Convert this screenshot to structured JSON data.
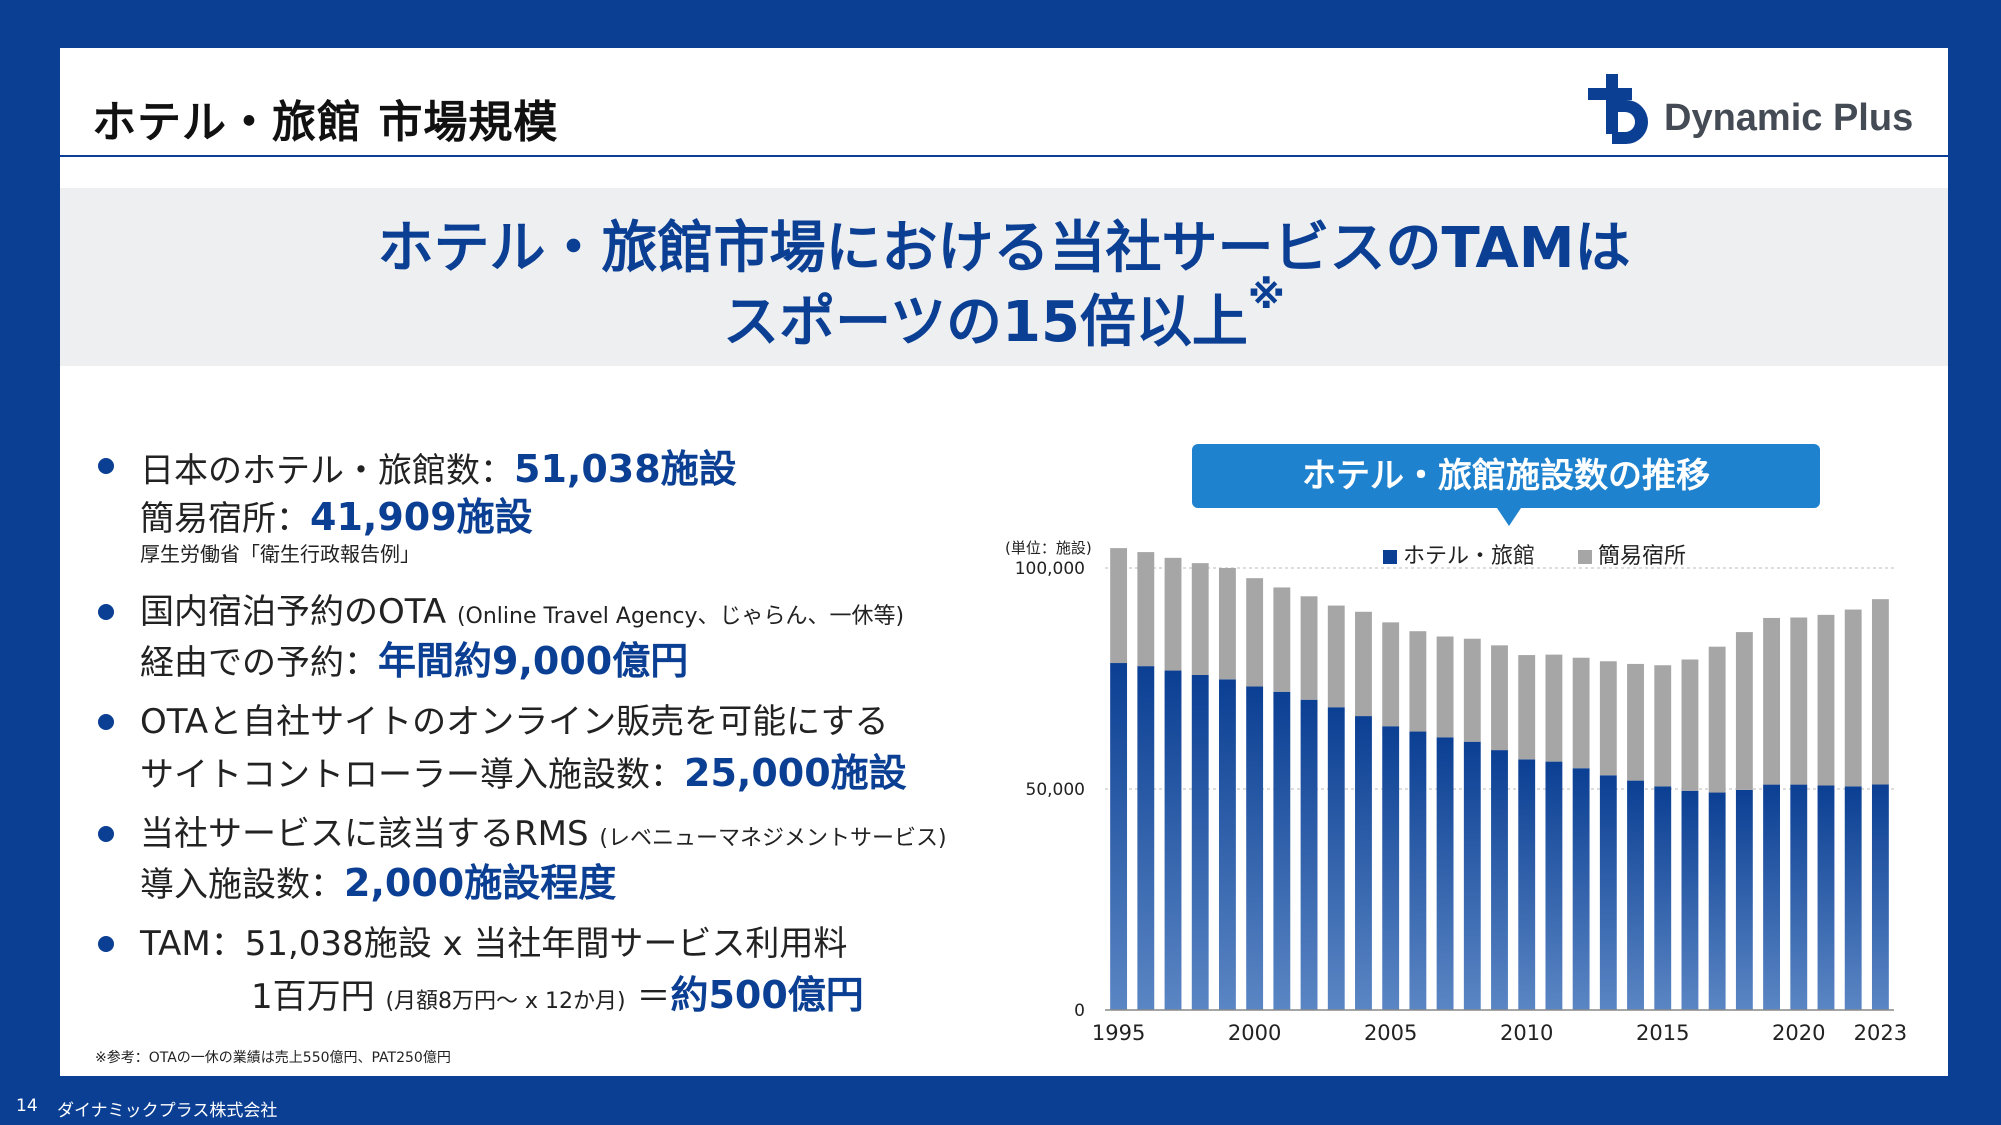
{
  "header": {
    "title": "ホテル・旅館 市場規模",
    "logo_text": "Dynamic Plus"
  },
  "hero": {
    "line1": "ホテル・旅館市場における当社サービスのTAMは",
    "line2": "スポーツの15倍以上",
    "mark": "※"
  },
  "bullets": [
    {
      "lines": [
        {
          "text": "日本のホテル・旅館数：",
          "highlight": "51,038施設"
        },
        {
          "text": "簡易宿所：",
          "highlight": "41,909施設"
        },
        {
          "source": "厚生労働省「衛生行政報告例」"
        }
      ]
    },
    {
      "lines": [
        {
          "text": "国内宿泊予約のOTA",
          "small": "(Online Travel Agency、じゃらん、一休等)"
        },
        {
          "text": "経由での予約：",
          "highlight": "年間約9,000億円"
        }
      ]
    },
    {
      "lines": [
        {
          "text": "OTAと自社サイトのオンライン販売を可能にする"
        },
        {
          "text": "サイトコントローラー導入施設数：",
          "highlight": "25,000施設"
        }
      ]
    },
    {
      "lines": [
        {
          "text": "当社サービスに該当するRMS",
          "small": "(レベニューマネジメントサービス)"
        },
        {
          "text": "導入施設数：",
          "highlight": "2,000施設程度"
        }
      ]
    },
    {
      "lines": [
        {
          "text": "TAM：51,038施設 x 当社年間サービス利用料"
        },
        {
          "text": "1百万円",
          "small": "(月額8万円～ x 12か月)",
          "text2": "＝",
          "highlight": "約500億円"
        }
      ]
    }
  ],
  "footnote": "※参考：OTAの一休の業績は売上550億円、PAT250億円",
  "footer": {
    "page_number": "14",
    "company": "ダイナミックプラス株式会社"
  },
  "chart_title": "ホテル・旅館施設数の推移",
  "colors": {
    "brand_blue": "#0b3f93",
    "accent_blue": "#1f82cf",
    "series_hotel_top": "#0b3f93",
    "series_hotel_bottom": "#5b86c4",
    "series_simple": "#a6a6a6"
  },
  "chart_data": {
    "type": "bar",
    "stacked": true,
    "title": "ホテル・旅館施設数の推移",
    "unit_label": "(単位：施設)",
    "legend_position": "top-right",
    "ylim": [
      0,
      100000
    ],
    "yticks": [
      0,
      50000,
      100000
    ],
    "ytick_labels": [
      "0",
      "50,000",
      "100,000"
    ],
    "xtick_labels": [
      "1995",
      "2000",
      "2005",
      "2010",
      "2015",
      "2020",
      "2023"
    ],
    "grid": true,
    "categories": [
      "1995",
      "1996",
      "1997",
      "1998",
      "1999",
      "2000",
      "2001",
      "2002",
      "2003",
      "2004",
      "2005",
      "2006",
      "2007",
      "2008",
      "2009",
      "2010",
      "2011",
      "2012",
      "2013",
      "2014",
      "2015",
      "2016",
      "2017",
      "2018",
      "2019",
      "2020",
      "2021",
      "2022",
      "2023"
    ],
    "series": [
      {
        "name": "ホテル・旅館",
        "values": [
          78500,
          77800,
          76800,
          75800,
          74800,
          73200,
          72000,
          70200,
          68500,
          66500,
          64200,
          63000,
          61700,
          60700,
          58800,
          56700,
          56200,
          54700,
          53100,
          51900,
          50600,
          49600,
          49200,
          49800,
          51000,
          51000,
          50800,
          50600,
          51038
        ]
      },
      {
        "name": "簡易宿所",
        "values": [
          26000,
          25800,
          25500,
          25300,
          25200,
          24500,
          23600,
          23400,
          23000,
          23600,
          23500,
          22700,
          22800,
          23300,
          23700,
          23600,
          24200,
          25000,
          25800,
          26400,
          27400,
          29700,
          33000,
          35700,
          37700,
          37800,
          38600,
          40000,
          41909
        ]
      }
    ]
  }
}
